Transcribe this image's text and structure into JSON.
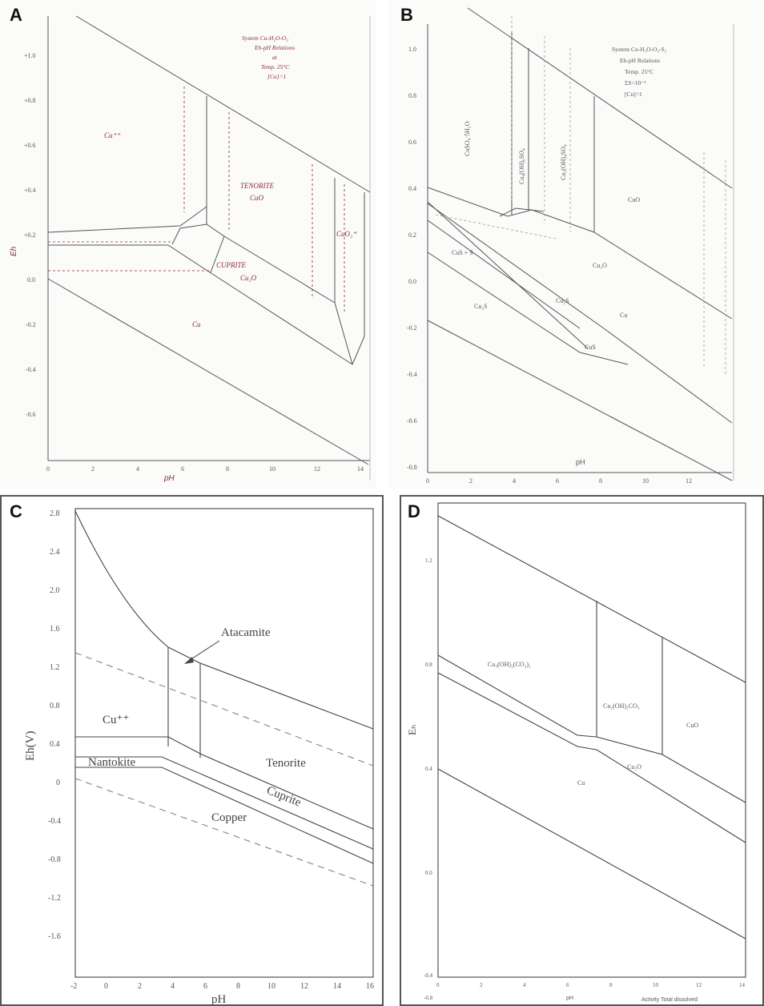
{
  "panels": {
    "a": {
      "letter": "A",
      "title_lines": [
        "System Cu-H₂O-O₂",
        "Eh-pH Relations",
        "at",
        "Temp. 25°C",
        "[Cu]=1"
      ],
      "yticks": [
        "+1.0",
        "+0.8",
        "+0.6",
        "+0.4",
        "+0.2",
        "0.0",
        "-0.2",
        "-0.4",
        "-0.6"
      ],
      "xticks": [
        "0",
        "2",
        "4",
        "6",
        "8",
        "10",
        "12",
        "14"
      ],
      "ylabel": "Eh",
      "xlabel": "pH",
      "labels": {
        "cupric": "Cu⁺⁺",
        "tenorite": "TENORITE",
        "tenorite_formula": "CuO",
        "cuprite": "CUPRITE",
        "cuprite_formula": "Cu₂O",
        "copper": "Cu",
        "cuo2": "CuO₂⁼"
      }
    },
    "b": {
      "letter": "B",
      "title_lines": [
        "System Cu-H₂O-O₂-S₂",
        "Eh-pH Relations",
        "Temp. 25°C",
        "ΣS=10⁻¹",
        "[Cu]=1"
      ],
      "yticks": [
        "1.0",
        "0.8",
        "0.6",
        "0.4",
        "0.2",
        "0.0",
        "-0.2",
        "-0.4",
        "-0.6",
        "-0.8"
      ],
      "xticks": [
        "0",
        "2",
        "4",
        "6",
        "8",
        "10",
        "12"
      ],
      "xlabel": "pH",
      "labels": {
        "cuso4": "CuSO₄·5H₂O",
        "brochantite_a": "Cu₄(OH)₆SO₄",
        "brochantite_b": "Cu₃(OH)₄SO₄",
        "cuo": "CuO",
        "cus": "CuS + S",
        "cu2o": "Cu₂O",
        "cu2s_left": "Cu₂S",
        "cu2s_mid": "Cu₂S",
        "cu": "Cu",
        "cu_small": "CuS"
      }
    },
    "c": {
      "letter": "C",
      "yticks": [
        "2.8",
        "2.4",
        "2.0",
        "1.6",
        "1.2",
        "0.8",
        "0.4",
        "0",
        "-0.4",
        "-0.8",
        "-1.2",
        "-1.6"
      ],
      "xticks": [
        "-2",
        "0",
        "2",
        "4",
        "6",
        "8",
        "10",
        "12",
        "14",
        "16"
      ],
      "ylabel": "Eh(V)",
      "xlabel": "pH",
      "labels": {
        "atacamite": "Atacamite",
        "cu2plus": "Cu⁺⁺",
        "nantokite": "Nantokite",
        "tenorite": "Tenorite",
        "cuprite": "Cuprite",
        "copper": "Copper"
      }
    },
    "d": {
      "letter": "D",
      "yticks": [
        "1.2",
        "0.8",
        "0.4",
        "0.0",
        "-0.4",
        "-0.8"
      ],
      "xticks": [
        "0",
        "2",
        "4",
        "6",
        "8",
        "10",
        "12",
        "14"
      ],
      "ylabel": "Eₕ",
      "xlabel": "pH",
      "footnote": "Activity Total dissolved",
      "labels": {
        "azurite": "Cu₃(OH)₂(CO₃)₂",
        "malachite": "Cu₂(OH)₂CO₃",
        "cuo": "CuO",
        "cu2o": "Cu₂O",
        "cu": "Cu"
      }
    }
  }
}
